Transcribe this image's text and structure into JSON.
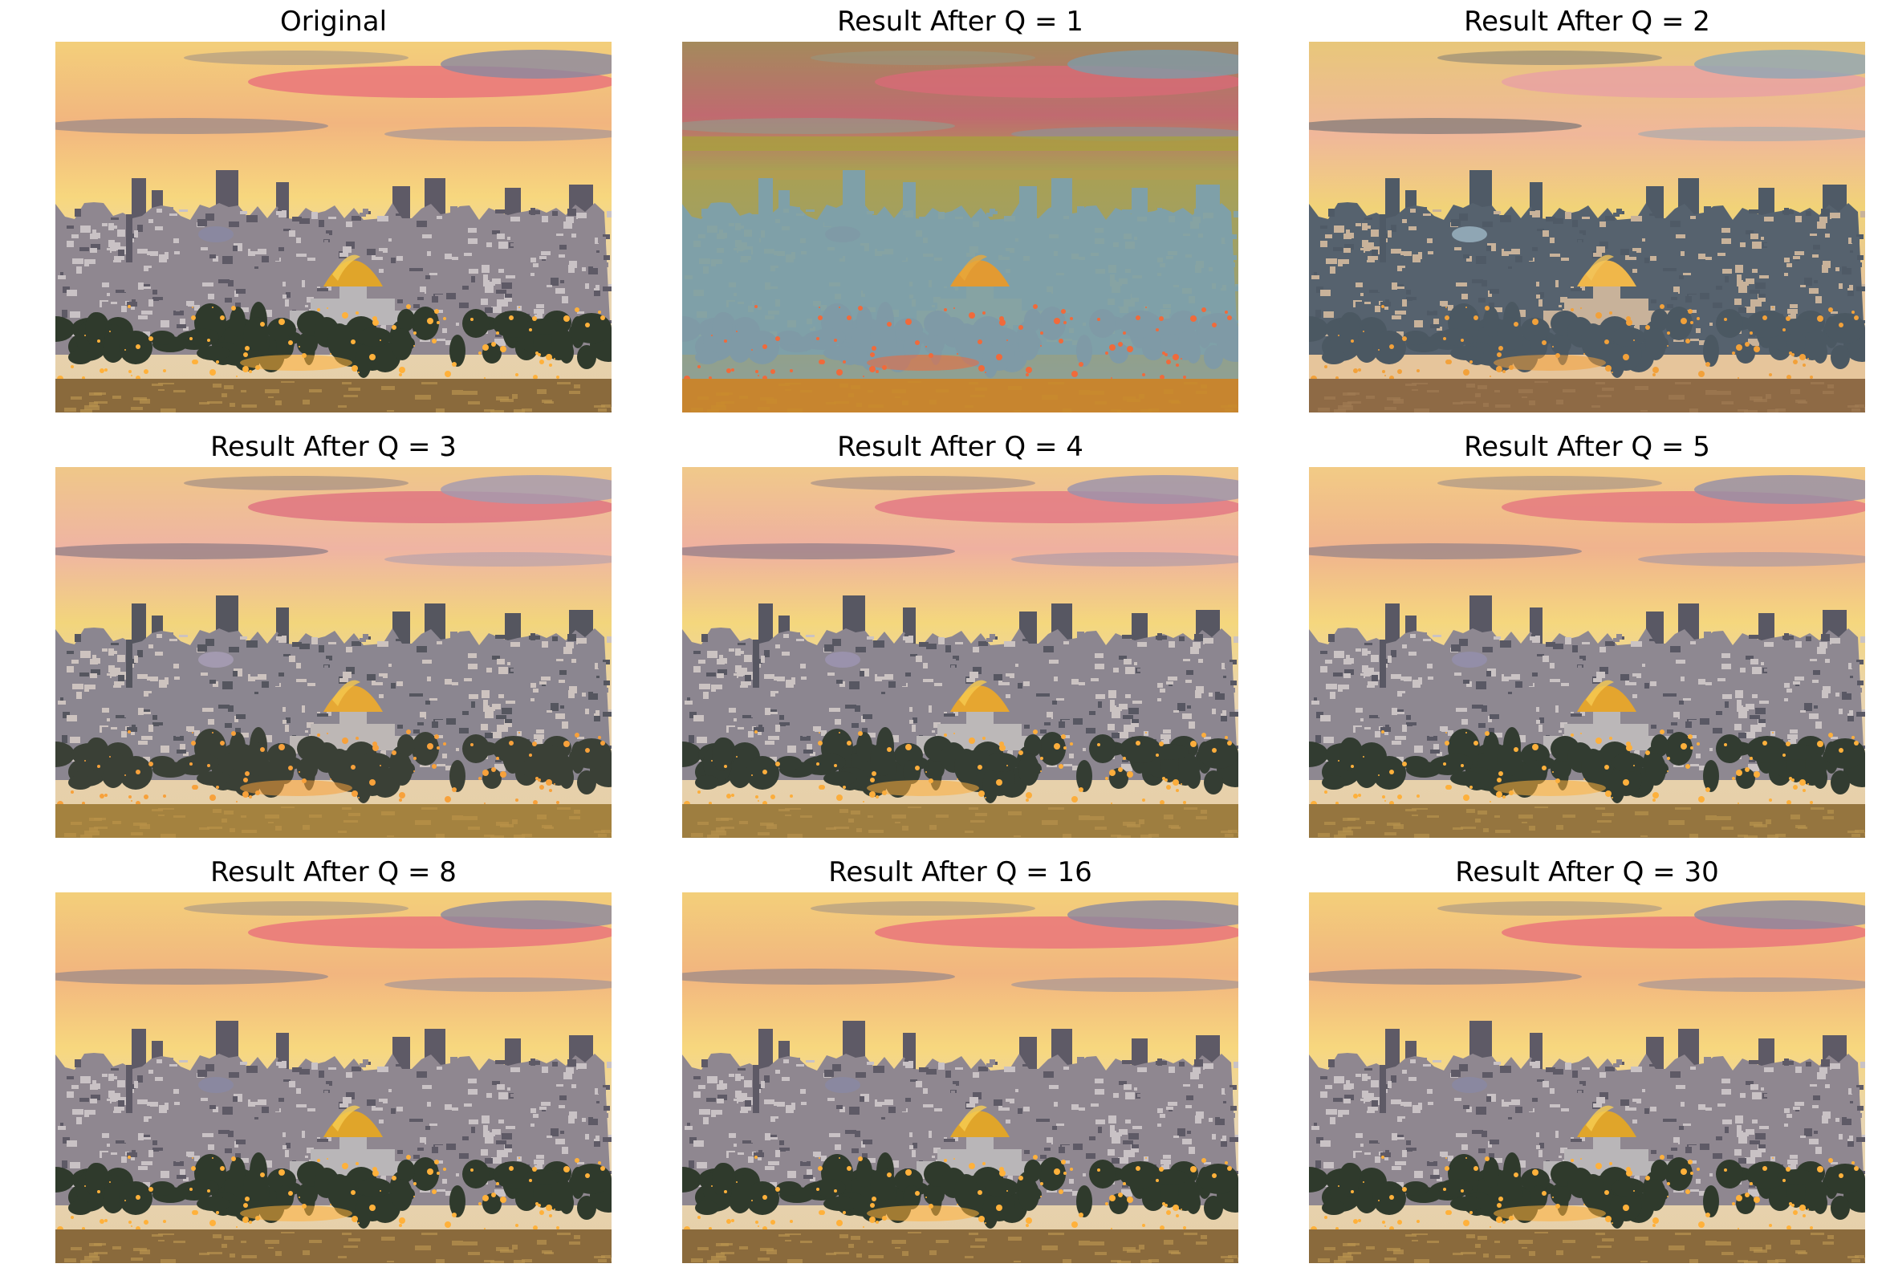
{
  "figure": {
    "panels": [
      {
        "title": "Original",
        "quantization": "original"
      },
      {
        "title": "Result After Q = 1",
        "quantization": 1
      },
      {
        "title": "Result After Q = 2",
        "quantization": 2
      },
      {
        "title": "Result After Q = 3",
        "quantization": 3
      },
      {
        "title": "Result After Q = 4",
        "quantization": 4
      },
      {
        "title": "Result After Q = 5",
        "quantization": 5
      },
      {
        "title": "Result After Q = 8",
        "quantization": 8
      },
      {
        "title": "Result After Q = 16",
        "quantization": 16
      },
      {
        "title": "Result After Q = 30",
        "quantization": 30
      }
    ]
  }
}
